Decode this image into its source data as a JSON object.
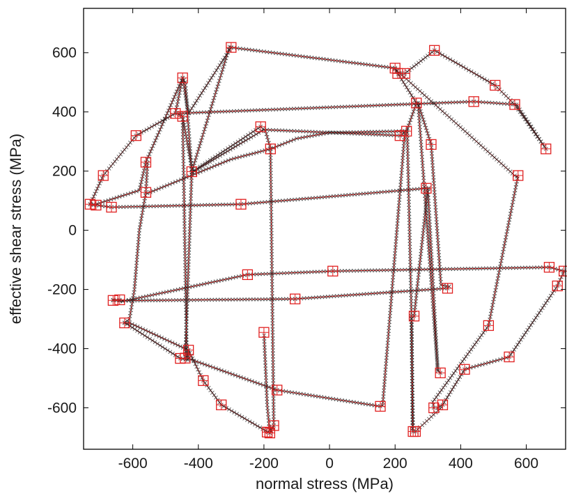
{
  "chart_data": {
    "type": "scatter",
    "title": "",
    "xlabel": "normal stress (MPa)",
    "ylabel": "effective shear stress (MPa)",
    "xlim": [
      -750,
      720
    ],
    "ylim": [
      -740,
      750
    ],
    "xticks": [
      -600,
      -400,
      -200,
      0,
      200,
      400,
      600
    ],
    "yticks": [
      -600,
      -400,
      -200,
      0,
      200,
      400,
      600
    ],
    "xtick_labels": [
      "-600",
      "-400",
      "-200",
      "0",
      "200",
      "400",
      "600"
    ],
    "ytick_labels": [
      "-600",
      "-400",
      "-200",
      "0",
      "200",
      "400",
      "600"
    ],
    "grid": false,
    "colors": {
      "line": "#e02020",
      "marker_square": "#e02020",
      "marker_cross": "#222222",
      "axes": "#000000"
    },
    "paths": [
      [
        [
          -730,
          88
        ],
        [
          -712,
          85
        ],
        [
          -665,
          78
        ],
        [
          -270,
          88
        ],
        [
          295,
          142
        ],
        [
          310,
          142
        ]
      ],
      [
        [
          -730,
          88
        ],
        [
          -690,
          185
        ],
        [
          -590,
          320
        ],
        [
          -470,
          395
        ],
        [
          -448,
          515
        ],
        [
          -430,
          395
        ],
        [
          -300,
          618
        ],
        [
          200,
          548
        ],
        [
          210,
          532
        ],
        [
          230,
          530
        ],
        [
          320,
          608
        ],
        [
          505,
          490
        ],
        [
          565,
          425
        ],
        [
          660,
          275
        ],
        [
          570,
          425
        ],
        [
          440,
          435
        ],
        [
          -465,
          395
        ],
        [
          -448,
          385
        ],
        [
          -418,
          198
        ],
        [
          -210,
          350
        ],
        [
          -195,
          335
        ],
        [
          -180,
          275
        ],
        [
          -170,
          -660
        ],
        [
          -182,
          -685
        ],
        [
          -190,
          -590
        ],
        [
          -200,
          -345
        ]
      ],
      [
        [
          -718,
          86
        ],
        [
          -580,
          135
        ],
        [
          -560,
          230
        ],
        [
          -448,
          515
        ],
        [
          -440,
          500
        ],
        [
          -420,
          195
        ],
        [
          -200,
          340
        ],
        [
          215,
          320
        ],
        [
          235,
          335
        ],
        [
          265,
          430
        ],
        [
          200,
          545
        ],
        [
          565,
          185
        ],
        [
          578,
          178
        ]
      ],
      [
        [
          -555,
          228
        ],
        [
          -560,
          128
        ],
        [
          -580,
          0
        ],
        [
          -595,
          -200
        ],
        [
          -610,
          -300
        ],
        [
          -625,
          -312
        ],
        [
          -455,
          -433
        ],
        [
          -432,
          -438
        ],
        [
          -430,
          -405
        ],
        [
          -435,
          -430
        ],
        [
          -448,
          385
        ]
      ],
      [
        [
          -640,
          -235
        ],
        [
          -660,
          -235
        ],
        [
          -630,
          -240
        ],
        [
          -250,
          -150
        ],
        [
          10,
          -138
        ],
        [
          670,
          -125
        ],
        [
          715,
          -138
        ],
        [
          695,
          -188
        ],
        [
          548,
          -428
        ],
        [
          412,
          -470
        ],
        [
          345,
          -590
        ],
        [
          330,
          -600
        ],
        [
          318,
          -600
        ],
        [
          315,
          -580
        ],
        [
          485,
          -322
        ],
        [
          575,
          185
        ]
      ],
      [
        [
          -660,
          -237
        ],
        [
          -640,
          -238
        ],
        [
          -105,
          -232
        ],
        [
          360,
          -196
        ],
        [
          365,
          -190
        ],
        [
          340,
          -185
        ],
        [
          310,
          290
        ],
        [
          270,
          430
        ],
        [
          330,
          -470
        ],
        [
          338,
          -482
        ],
        [
          330,
          -475
        ],
        [
          300,
          140
        ],
        [
          258,
          -290
        ],
        [
          250,
          -298
        ],
        [
          255,
          -680
        ],
        [
          262,
          -680
        ],
        [
          345,
          -595
        ]
      ],
      [
        [
          -625,
          -313
        ],
        [
          -610,
          -313
        ],
        [
          -430,
          -405
        ],
        [
          -385,
          -508
        ],
        [
          -330,
          -590
        ],
        [
          -188,
          -682
        ],
        [
          -170,
          -660
        ]
      ],
      [
        [
          -440,
          -430
        ],
        [
          -160,
          -540
        ],
        [
          155,
          -595
        ],
        [
          162,
          -592
        ],
        [
          230,
          335
        ],
        [
          237,
          340
        ],
        [
          250,
          -290
        ],
        [
          253,
          -680
        ]
      ],
      [
        [
          -300,
          618
        ],
        [
          -305,
          620
        ],
        [
          -420,
          198
        ],
        [
          -440,
          -430
        ]
      ],
      [
        [
          -555,
          125
        ],
        [
          -300,
          240
        ],
        [
          -180,
          275
        ],
        [
          -100,
          310
        ],
        [
          0,
          330
        ],
        [
          230,
          335
        ]
      ]
    ],
    "squares": [
      [
        -730,
        88
      ],
      [
        -712,
        85
      ],
      [
        -665,
        78
      ],
      [
        -270,
        88
      ],
      [
        295,
        142
      ],
      [
        -690,
        185
      ],
      [
        -590,
        320
      ],
      [
        -470,
        395
      ],
      [
        -448,
        385
      ],
      [
        -448,
        515
      ],
      [
        -300,
        618
      ],
      [
        200,
        548
      ],
      [
        208,
        530
      ],
      [
        230,
        530
      ],
      [
        320,
        608
      ],
      [
        505,
        490
      ],
      [
        565,
        425
      ],
      [
        660,
        275
      ],
      [
        440,
        435
      ],
      [
        -420,
        198
      ],
      [
        -210,
        350
      ],
      [
        -180,
        275
      ],
      [
        -560,
        230
      ],
      [
        -560,
        128
      ],
      [
        -170,
        -660
      ],
      [
        -182,
        -685
      ],
      [
        -190,
        -682
      ],
      [
        215,
        320
      ],
      [
        235,
        335
      ],
      [
        265,
        430
      ],
      [
        310,
        290
      ],
      [
        575,
        185
      ],
      [
        -625,
        -313
      ],
      [
        -640,
        -235
      ],
      [
        -660,
        -237
      ],
      [
        -250,
        -150
      ],
      [
        10,
        -138
      ],
      [
        -105,
        -232
      ],
      [
        360,
        -196
      ],
      [
        670,
        -125
      ],
      [
        715,
        -138
      ],
      [
        695,
        -188
      ],
      [
        548,
        -428
      ],
      [
        412,
        -470
      ],
      [
        345,
        -590
      ],
      [
        318,
        -600
      ],
      [
        485,
        -322
      ],
      [
        338,
        -482
      ],
      [
        258,
        -290
      ],
      [
        255,
        -680
      ],
      [
        262,
        -680
      ],
      [
        155,
        -595
      ],
      [
        -430,
        -405
      ],
      [
        -440,
        -432
      ],
      [
        -455,
        -433
      ],
      [
        -385,
        -508
      ],
      [
        -330,
        -590
      ],
      [
        -160,
        -540
      ],
      [
        -200,
        -345
      ]
    ]
  }
}
